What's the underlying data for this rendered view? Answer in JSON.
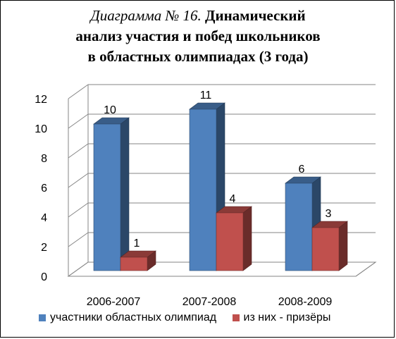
{
  "title": {
    "italic": "Диаграмма № 16.",
    "line1_rest": "Динамический",
    "line2": "анализ участия и побед школьников",
    "line3": "в областных олимпиадах (3 года)"
  },
  "chart_data": {
    "type": "bar",
    "categories": [
      "2006-2007",
      "2007-2008",
      "2008-2009"
    ],
    "series": [
      {
        "name": "участники областных олимпиад",
        "values": [
          10,
          11,
          6
        ],
        "color": "#4f81bd"
      },
      {
        "name": "из них - призёры",
        "values": [
          1,
          4,
          3
        ],
        "color": "#c0504d"
      }
    ],
    "yticks": [
      "0",
      "2",
      "4",
      "6",
      "8",
      "10",
      "12"
    ],
    "ylim": [
      0,
      12
    ],
    "grid": true,
    "legend": "bottom",
    "style": "3d"
  }
}
